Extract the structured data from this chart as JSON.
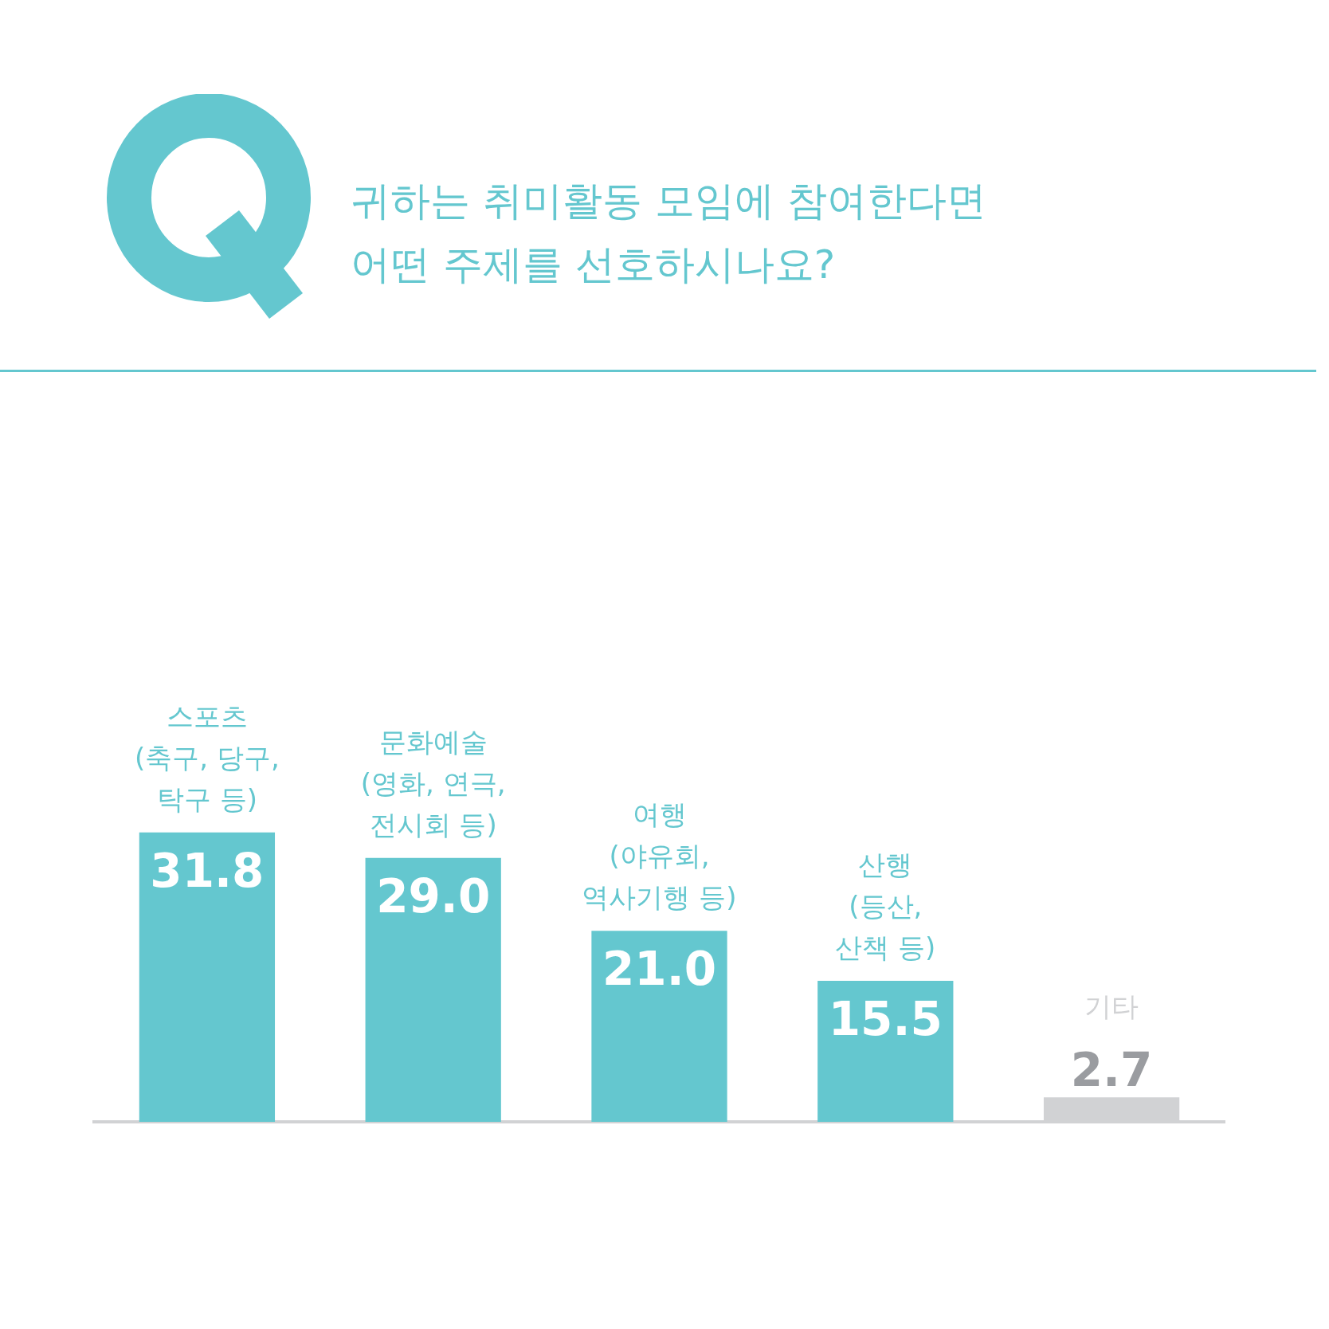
{
  "chart_data": {
    "type": "bar",
    "title": "귀하는 취미활동 모임에 참여한다면\n어떤 주제를 선호하시나요?",
    "categories": [
      "스포츠\n(축구, 당구,\n탁구 등)",
      "문화예술\n(영화, 연극,\n전시회 등)",
      "여행\n(야유회,\n역사기행 등)",
      "산행\n(등산,\n산책 등)",
      "기타"
    ],
    "values": [
      31.8,
      29.0,
      21.0,
      15.5,
      2.7
    ],
    "colors": [
      "#64c7cf",
      "#64c7cf",
      "#64c7cf",
      "#64c7cf",
      "#d1d2d4"
    ],
    "value_labels": [
      "31.8",
      "29.0",
      "21.0",
      "15.5",
      "2.7"
    ],
    "grid": false,
    "legend": false
  }
}
